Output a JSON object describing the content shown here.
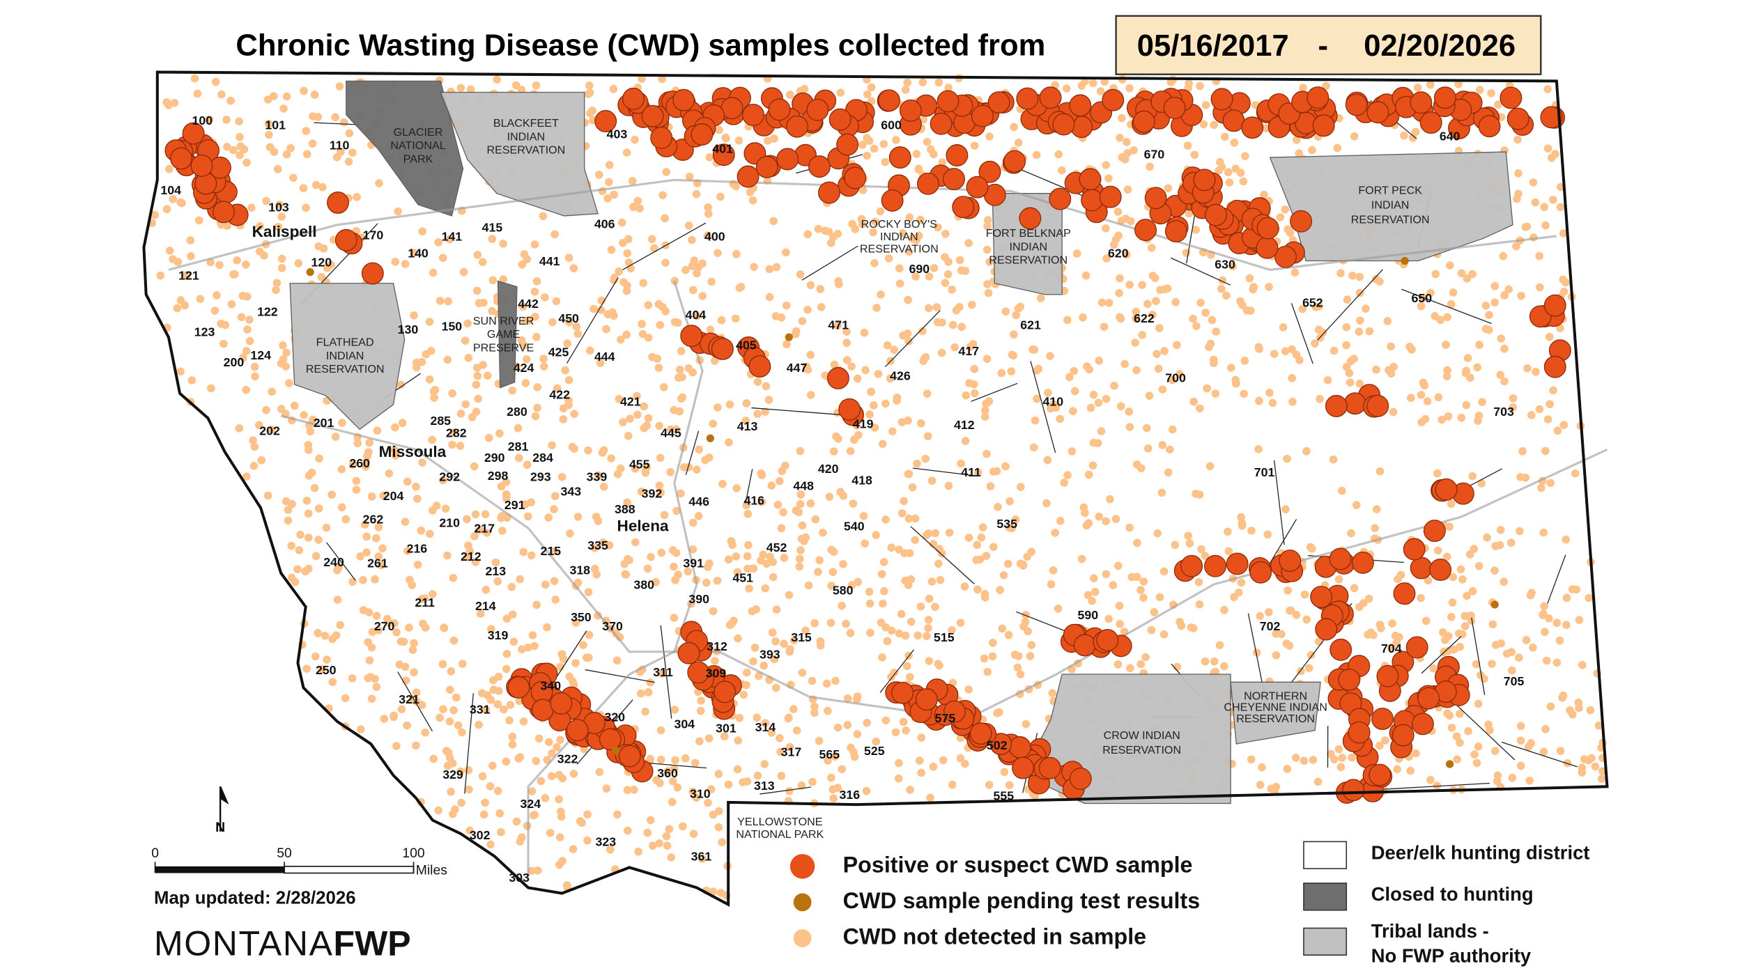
{
  "title": "Chronic Wasting Disease (CWD) samples collected from",
  "date_range": {
    "start": "05/16/2017",
    "separator": "-",
    "end": "02/20/2026"
  },
  "districts": [
    "100",
    "101",
    "110",
    "104",
    "103",
    "121",
    "120",
    "170",
    "141",
    "415",
    "140",
    "122",
    "123",
    "124",
    "200",
    "130",
    "150",
    "442",
    "450",
    "425",
    "424",
    "444",
    "422",
    "441",
    "406",
    "403",
    "401",
    "400",
    "404",
    "405",
    "600",
    "670",
    "640",
    "690",
    "620",
    "630",
    "650",
    "652",
    "621",
    "622",
    "471",
    "447",
    "426",
    "417",
    "410",
    "700",
    "703",
    "701",
    "412",
    "419",
    "421",
    "445",
    "413",
    "455",
    "420",
    "418",
    "411",
    "448",
    "392",
    "446",
    "416",
    "388",
    "339",
    "343",
    "293",
    "284",
    "281",
    "280",
    "285",
    "282",
    "290",
    "298",
    "292",
    "260",
    "201",
    "202",
    "204",
    "291",
    "262",
    "210",
    "217",
    "216",
    "212",
    "213",
    "215",
    "335",
    "318",
    "240",
    "261",
    "211",
    "214",
    "270",
    "319",
    "350",
    "370",
    "380",
    "391",
    "390",
    "451",
    "452",
    "540",
    "535",
    "580",
    "515",
    "590",
    "702",
    "704",
    "705",
    "250",
    "321",
    "331",
    "340",
    "320",
    "311",
    "312",
    "309",
    "393",
    "315",
    "304",
    "301",
    "314",
    "322",
    "329",
    "324",
    "302",
    "360",
    "317",
    "565",
    "313",
    "310",
    "316",
    "525",
    "575",
    "502",
    "555",
    "323",
    "303",
    "361"
  ],
  "places": [
    "Kalispell",
    "Missoula",
    "Helena"
  ],
  "areas": [
    {
      "lines": [
        "GLACIER",
        "NATIONAL",
        "PARK"
      ]
    },
    {
      "lines": [
        "BLACKFEET",
        "INDIAN",
        "RESERVATION"
      ]
    },
    {
      "lines": [
        "FLATHEAD",
        "INDIAN",
        "RESERVATION"
      ]
    },
    {
      "lines": [
        "SUN RIVER",
        "GAME",
        "PRESERVE"
      ]
    },
    {
      "lines": [
        "ROCKY BOY'S",
        "INDIAN",
        "RESERVATION"
      ]
    },
    {
      "lines": [
        "FORT BELKNAP",
        "INDIAN",
        "RESERVATION"
      ]
    },
    {
      "lines": [
        "FORT PECK",
        "INDIAN",
        "RESERVATION"
      ]
    },
    {
      "lines": [
        "CROW INDIAN",
        "RESERVATION"
      ]
    },
    {
      "lines": [
        "NORTHERN",
        "CHEYENNE INDIAN",
        "RESERVATION"
      ]
    },
    {
      "lines": [
        "YELLOWSTONE",
        "NATIONAL PARK"
      ]
    }
  ],
  "legend": {
    "samples": [
      {
        "label": "Positive or suspect CWD sample",
        "color": "#e8501a"
      },
      {
        "label": "CWD sample pending test results",
        "color": "#b8720e"
      },
      {
        "label": "CWD not detected in sample",
        "color": "#fcc28a"
      }
    ],
    "areas": [
      {
        "lines": [
          "Deer/elk hunting district"
        ],
        "color": "#ffffff"
      },
      {
        "lines": [
          "Closed to hunting"
        ],
        "color": "#6e6e6e"
      },
      {
        "lines": [
          "Tribal lands -",
          "No FWP authority"
        ],
        "color": "#c0c0c0"
      }
    ]
  },
  "scale": {
    "ticks": [
      0,
      50,
      100
    ],
    "unit": "Miles"
  },
  "north": "N",
  "updated": "Map updated: 2/28/2026",
  "logo": {
    "left": "MONTANA",
    "right": "FWP"
  }
}
